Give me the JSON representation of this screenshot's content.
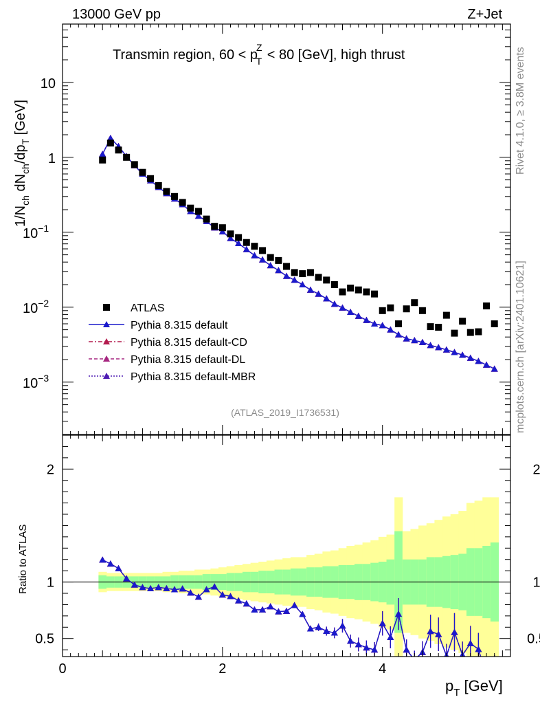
{
  "header": {
    "left": "13000 GeV pp",
    "right": "Z+Jet"
  },
  "side_labels": {
    "rivet": "Rivet 4.1.0, ≥ 3.8M events",
    "mcplots": "mcplots.cern.ch [arXiv:2401.10621]"
  },
  "colors": {
    "atlas": "#000000",
    "default": "#1a1acc",
    "cd": "#b31a4d",
    "dl": "#a62680",
    "mbr": "#4d1ab3",
    "band_inner": "#99ff99",
    "band_outer": "#ffff99"
  },
  "chart_data": {
    "type": "scatter",
    "title": "Transmin region, 60 < p_T^Z < 80 [GeV], high thrust",
    "title_parts": [
      "Transmin region, 60 < p",
      "Z",
      "T",
      " < 80 [GeV], high thrust"
    ],
    "analysis_id": "(ATLAS_2019_I1736531)",
    "xlabel": "p_T [GeV]",
    "xlabel_parts": [
      "p",
      "T",
      " [GeV]"
    ],
    "ylabel": "1/N_ch dN_ch/dp_T [GeV]",
    "ylabel_parts": [
      "1/N",
      "ch",
      " dN",
      "ch",
      "/dp",
      "T",
      " [GeV]"
    ],
    "ratio_ylabel": "Ratio to ATLAS",
    "xlim": [
      0,
      5.6
    ],
    "ylim": [
      0.0002,
      60
    ],
    "ratio_ylim": [
      0.34,
      2.3
    ],
    "xticks": [
      0,
      2,
      4
    ],
    "xtick_labels": [
      "0",
      "2",
      "4"
    ],
    "yticks": [
      0.001,
      0.01,
      0.1,
      1,
      10
    ],
    "ytick_labels": [
      {
        "base": "10",
        "exp": "−3"
      },
      {
        "base": "10",
        "exp": "−2"
      },
      {
        "base": "10",
        "exp": "−1"
      },
      {
        "base": "1",
        "exp": ""
      },
      {
        "base": "10",
        "exp": ""
      }
    ],
    "ratio_yticks": [
      0.5,
      1,
      2
    ],
    "ratio_ytick_labels": [
      "0.5",
      "1",
      "2"
    ],
    "legend_position": "lower-left",
    "legend": [
      "ATLAS",
      "Pythia 8.315 default",
      "Pythia 8.315 default-CD",
      "Pythia 8.315 default-DL",
      "Pythia 8.315 default-MBR"
    ],
    "x": [
      0.5,
      0.6,
      0.7,
      0.8,
      0.9,
      1.0,
      1.1,
      1.2,
      1.3,
      1.4,
      1.5,
      1.6,
      1.7,
      1.8,
      1.9,
      2.0,
      2.1,
      2.2,
      2.3,
      2.4,
      2.5,
      2.6,
      2.7,
      2.8,
      2.9,
      3.0,
      3.1,
      3.2,
      3.3,
      3.4,
      3.5,
      3.6,
      3.7,
      3.8,
      3.9,
      4.0,
      4.1,
      4.2,
      4.3,
      4.4,
      4.5,
      4.6,
      4.7,
      4.8,
      4.9,
      5.0,
      5.1,
      5.2,
      5.3,
      5.4
    ],
    "atlas": [
      0.92,
      1.55,
      1.25,
      1.0,
      0.8,
      0.63,
      0.52,
      0.42,
      0.35,
      0.3,
      0.25,
      0.21,
      0.19,
      0.15,
      0.12,
      0.115,
      0.095,
      0.085,
      0.073,
      0.065,
      0.057,
      0.046,
      0.042,
      0.035,
      0.029,
      0.028,
      0.029,
      0.025,
      0.023,
      0.02,
      0.016,
      0.018,
      0.017,
      0.016,
      0.015,
      0.009,
      0.0098,
      0.006,
      0.0095,
      0.0115,
      0.009,
      0.0055,
      0.0054,
      0.0078,
      0.0045,
      0.0065,
      0.0046,
      0.0047,
      0.0104,
      0.006
    ],
    "series": [
      {
        "name": "Pythia 8.315 default",
        "key": "default",
        "style": "solid",
        "values": [
          1.1,
          1.8,
          1.4,
          1.03,
          0.78,
          0.6,
          0.49,
          0.4,
          0.33,
          0.28,
          0.235,
          0.19,
          0.165,
          0.14,
          0.115,
          0.102,
          0.083,
          0.071,
          0.059,
          0.049,
          0.043,
          0.036,
          0.031,
          0.026,
          0.023,
          0.02,
          0.017,
          0.015,
          0.013,
          0.011,
          0.0098,
          0.0086,
          0.0076,
          0.0067,
          0.006,
          0.0057,
          0.005,
          0.0043,
          0.0038,
          0.0036,
          0.0034,
          0.0031,
          0.0029,
          0.0027,
          0.0025,
          0.0023,
          0.0021,
          0.0019,
          0.0017,
          0.0015
        ]
      },
      {
        "name": "Pythia 8.315 default-CD",
        "key": "cd",
        "style": "dashdot",
        "values": [
          1.1,
          1.8,
          1.4,
          1.03,
          0.78,
          0.6,
          0.49,
          0.4,
          0.33,
          0.28,
          0.235,
          0.19,
          0.165,
          0.14,
          0.115,
          0.102,
          0.083,
          0.071,
          0.059,
          0.049,
          0.043,
          0.036,
          0.031,
          0.026,
          0.023,
          0.02,
          0.017,
          0.015,
          0.013,
          0.011,
          0.0098,
          0.0086,
          0.0076,
          0.0067,
          0.006,
          0.0057,
          0.005,
          0.0043,
          0.0038,
          0.0036,
          0.0034,
          0.0031,
          0.0029,
          0.0027,
          0.0025,
          0.0023,
          0.0021,
          0.0019,
          0.0017,
          0.0015
        ]
      },
      {
        "name": "Pythia 8.315 default-DL",
        "key": "dl",
        "style": "dashed",
        "values": [
          1.1,
          1.8,
          1.4,
          1.03,
          0.78,
          0.6,
          0.49,
          0.4,
          0.33,
          0.28,
          0.235,
          0.19,
          0.165,
          0.14,
          0.115,
          0.102,
          0.083,
          0.071,
          0.059,
          0.049,
          0.043,
          0.036,
          0.031,
          0.026,
          0.023,
          0.02,
          0.017,
          0.015,
          0.013,
          0.011,
          0.0098,
          0.0086,
          0.0076,
          0.0067,
          0.006,
          0.0057,
          0.005,
          0.0043,
          0.0038,
          0.0036,
          0.0034,
          0.0031,
          0.0029,
          0.0027,
          0.0025,
          0.0023,
          0.0021,
          0.0019,
          0.0017,
          0.0015
        ]
      },
      {
        "name": "Pythia 8.315 default-MBR",
        "key": "mbr",
        "style": "dotted",
        "values": [
          1.1,
          1.8,
          1.4,
          1.03,
          0.78,
          0.6,
          0.49,
          0.4,
          0.33,
          0.28,
          0.235,
          0.19,
          0.165,
          0.14,
          0.115,
          0.102,
          0.083,
          0.071,
          0.059,
          0.049,
          0.043,
          0.036,
          0.031,
          0.026,
          0.023,
          0.02,
          0.017,
          0.015,
          0.013,
          0.011,
          0.0098,
          0.0086,
          0.0076,
          0.0067,
          0.006,
          0.0057,
          0.005,
          0.0043,
          0.0038,
          0.0036,
          0.0034,
          0.0031,
          0.0029,
          0.0027,
          0.0025,
          0.0023,
          0.0021,
          0.0019,
          0.0017,
          0.0015
        ]
      }
    ],
    "ratio_band_inner": [
      0.06,
      0.05,
      0.05,
      0.05,
      0.05,
      0.05,
      0.05,
      0.05,
      0.05,
      0.06,
      0.06,
      0.06,
      0.06,
      0.07,
      0.07,
      0.07,
      0.08,
      0.08,
      0.09,
      0.09,
      0.1,
      0.1,
      0.11,
      0.11,
      0.12,
      0.12,
      0.13,
      0.13,
      0.14,
      0.14,
      0.15,
      0.15,
      0.16,
      0.16,
      0.17,
      0.18,
      0.2,
      0.45,
      0.2,
      0.2,
      0.2,
      0.22,
      0.22,
      0.23,
      0.24,
      0.25,
      0.3,
      0.3,
      0.32,
      0.35
    ],
    "ratio_band_outer": [
      0.09,
      0.08,
      0.08,
      0.08,
      0.08,
      0.08,
      0.08,
      0.08,
      0.09,
      0.09,
      0.1,
      0.1,
      0.11,
      0.11,
      0.12,
      0.13,
      0.14,
      0.15,
      0.16,
      0.17,
      0.18,
      0.19,
      0.2,
      0.21,
      0.22,
      0.22,
      0.24,
      0.25,
      0.27,
      0.28,
      0.3,
      0.32,
      0.33,
      0.35,
      0.37,
      0.4,
      0.42,
      0.75,
      0.45,
      0.47,
      0.5,
      0.52,
      0.55,
      0.58,
      0.6,
      0.63,
      0.7,
      0.72,
      0.75,
      0.75
    ]
  }
}
